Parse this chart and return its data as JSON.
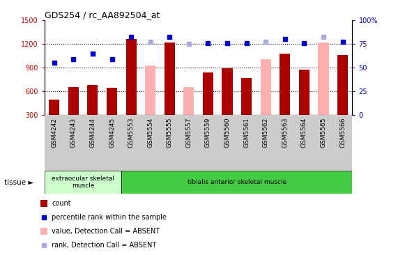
{
  "title": "GDS254 / rc_AA892504_at",
  "categories": [
    "GSM4242",
    "GSM4243",
    "GSM4244",
    "GSM4245",
    "GSM5553",
    "GSM5554",
    "GSM5555",
    "GSM5557",
    "GSM5559",
    "GSM5560",
    "GSM5561",
    "GSM5562",
    "GSM5563",
    "GSM5564",
    "GSM5565",
    "GSM5566"
  ],
  "bar_values": [
    490,
    650,
    680,
    640,
    1260,
    null,
    1220,
    null,
    840,
    890,
    770,
    null,
    1080,
    870,
    null,
    1060
  ],
  "bar_absent_values": [
    null,
    null,
    null,
    null,
    null,
    930,
    null,
    650,
    null,
    null,
    null,
    1010,
    null,
    null,
    1220,
    null
  ],
  "dot_values": [
    960,
    1010,
    1080,
    1010,
    1290,
    null,
    1290,
    null,
    1210,
    1210,
    1210,
    null,
    1260,
    1210,
    null,
    1230
  ],
  "dot_absent_values": [
    null,
    null,
    null,
    null,
    null,
    1230,
    null,
    1200,
    null,
    null,
    null,
    1230,
    null,
    null,
    1290,
    null
  ],
  "ylim_left": [
    300,
    1500
  ],
  "ylim_right": [
    0,
    100
  ],
  "yticks_left": [
    300,
    600,
    900,
    1200,
    1500
  ],
  "yticks_right": [
    0,
    25,
    50,
    75,
    100
  ],
  "bar_color": "#AA0000",
  "bar_absent_color": "#FFB0B0",
  "dot_color": "#0000CC",
  "dot_absent_color": "#AAAADD",
  "grid_color": "#000000",
  "tissue_label1": "extraocular skeletal\nmuscle",
  "tissue_label2": "tibialis anterior skeletal muscle",
  "tissue_bg1": "#CCFFCC",
  "tissue_bg2": "#44CC44",
  "bg_color": "#FFFFFF",
  "xticklabel_bg": "#CCCCCC",
  "legend": [
    {
      "label": "count",
      "color": "#AA0000",
      "type": "bar"
    },
    {
      "label": "percentile rank within the sample",
      "color": "#0000CC",
      "type": "dot"
    },
    {
      "label": "value, Detection Call = ABSENT",
      "color": "#FFB0B0",
      "type": "bar"
    },
    {
      "label": "rank, Detection Call = ABSENT",
      "color": "#AAAADD",
      "type": "dot"
    }
  ]
}
